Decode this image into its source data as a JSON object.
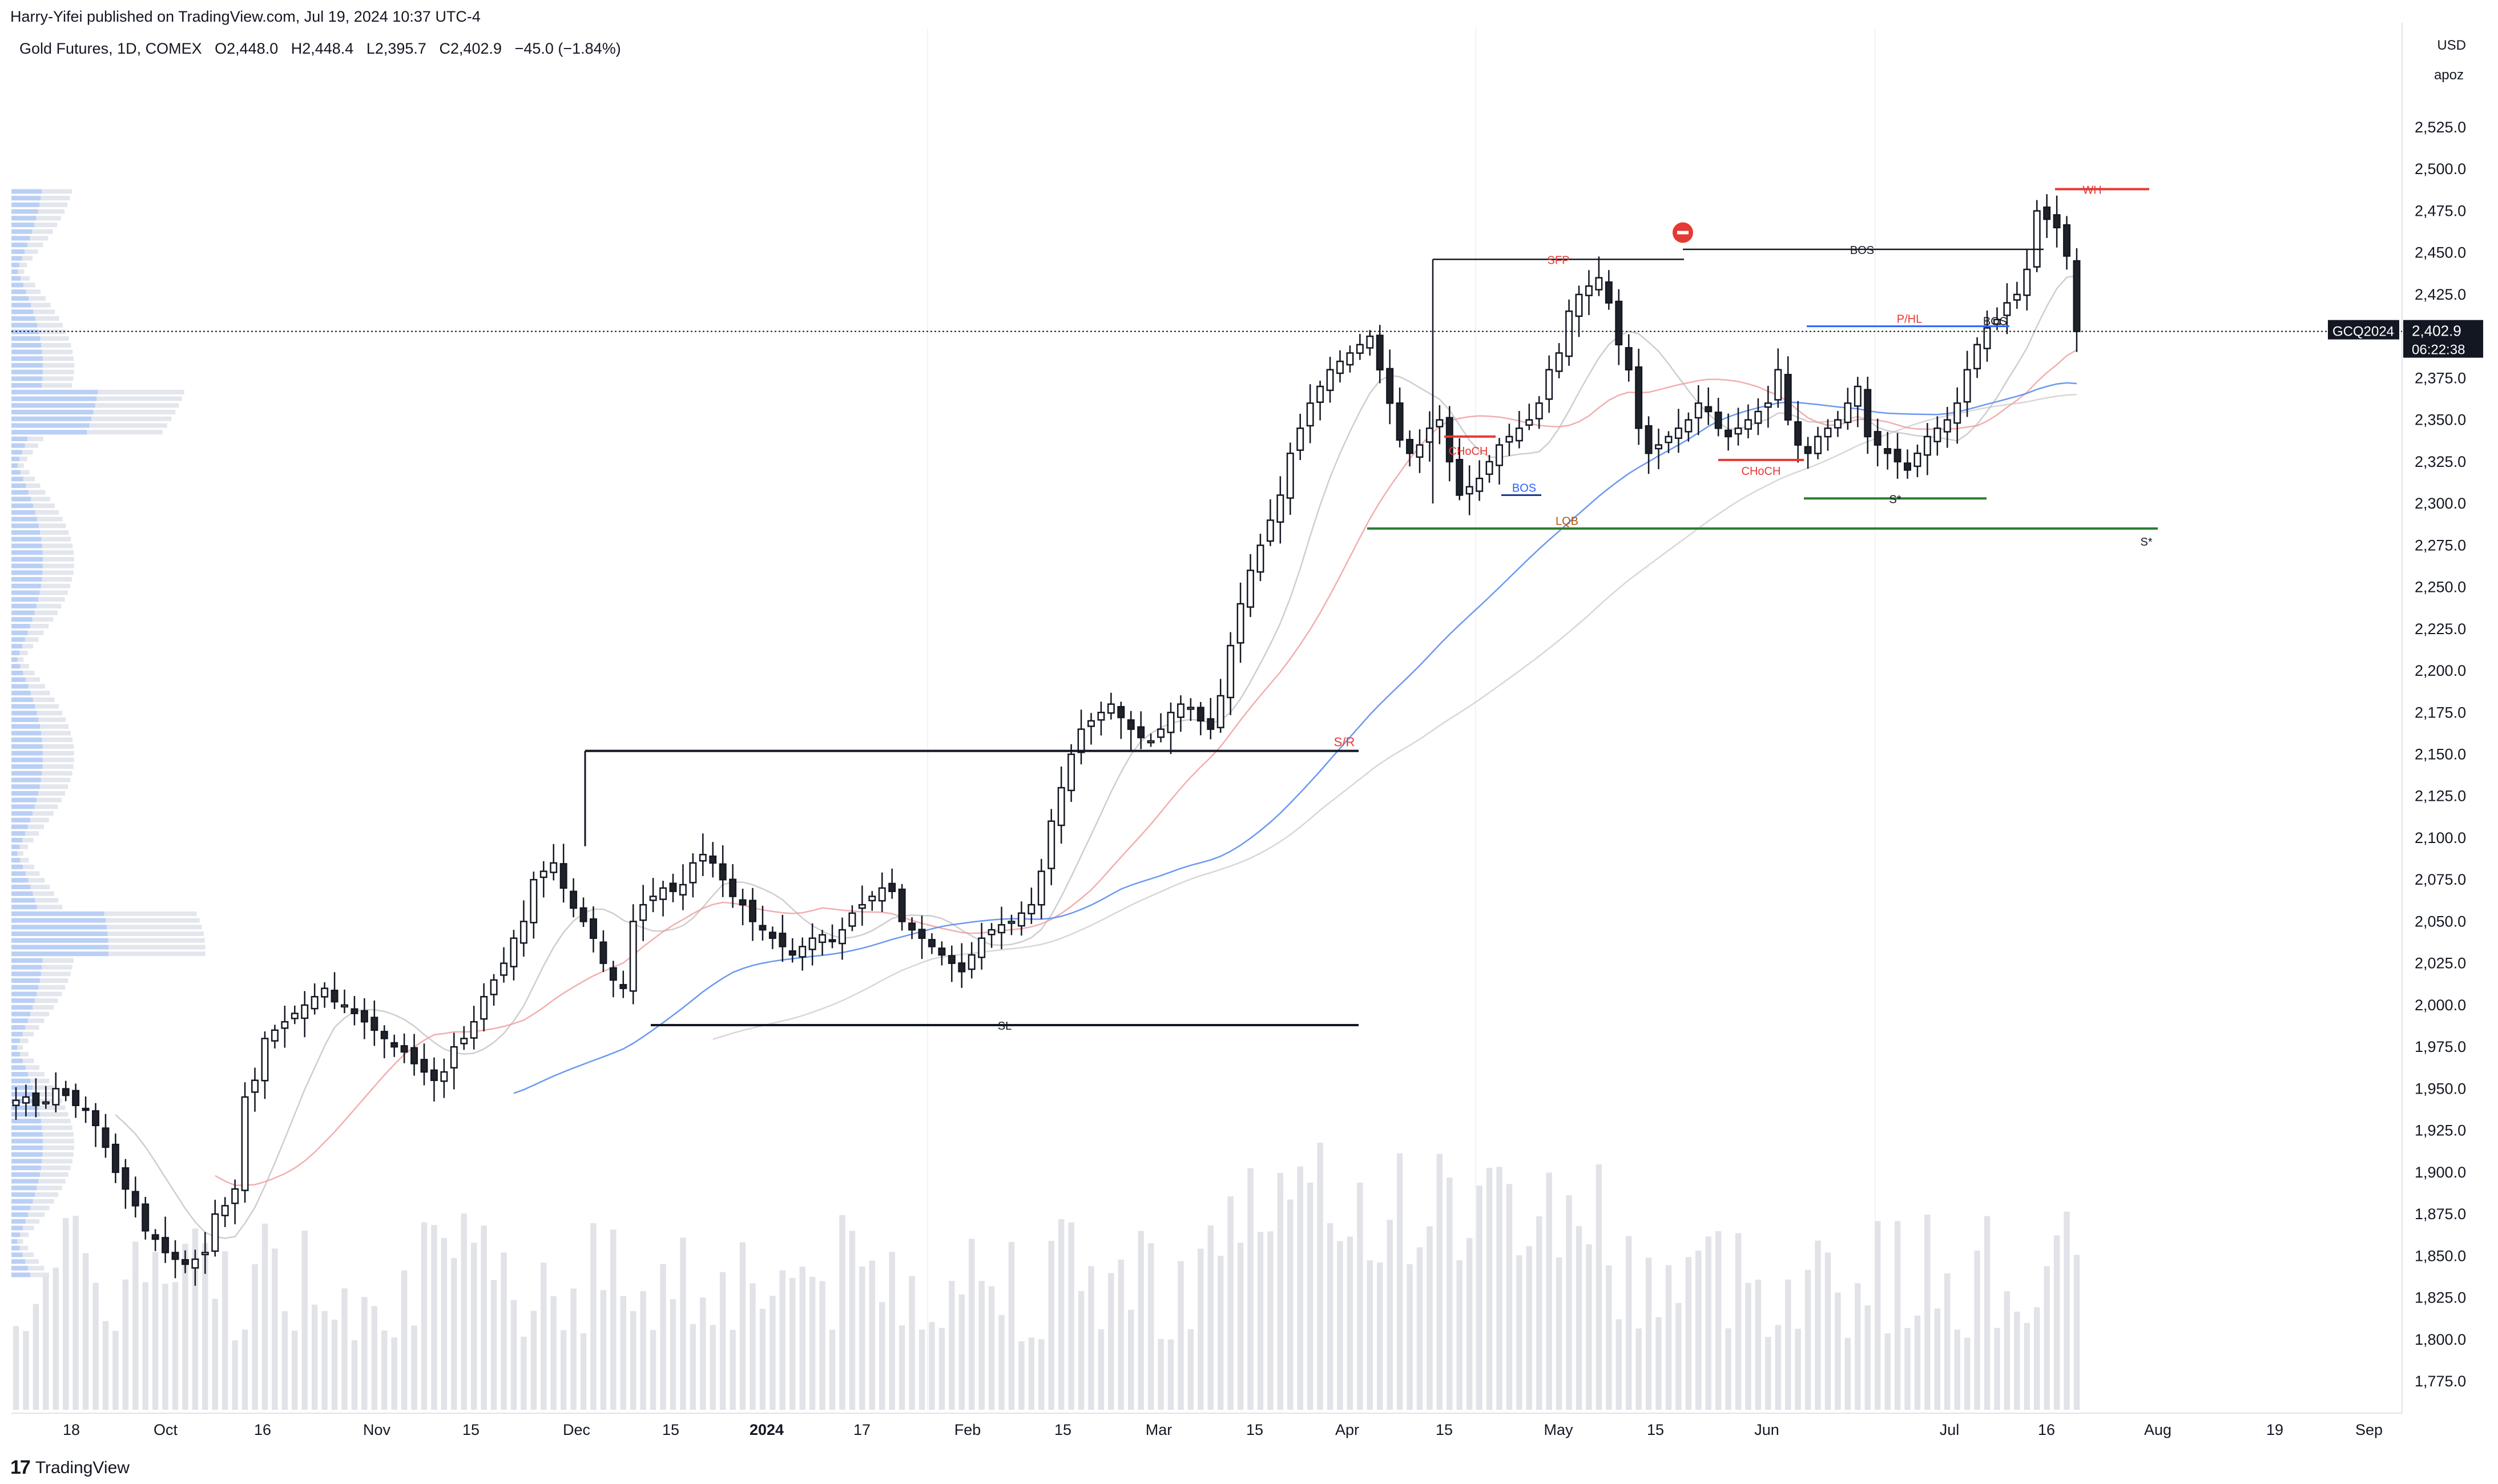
{
  "header": {
    "publisher": "Harry-Yifei published on TradingView.com, Jul 19, 2024 10:37 UTC-4",
    "symbol_line": "Gold Futures, 1D, COMEX",
    "open": "O2,448.0",
    "high": "H2,448.4",
    "low": "L2,395.7",
    "close": "C2,402.9",
    "change": "−45.0 (−1.84%)"
  },
  "axis": {
    "currency": "USD",
    "unit": "apoz",
    "y_ticks": [
      "2,525.0",
      "2,500.0",
      "2,475.0",
      "2,450.0",
      "2,425.0",
      "2,400.0",
      "2,375.0",
      "2,350.0",
      "2,325.0",
      "2,300.0",
      "2,275.0",
      "2,250.0",
      "2,225.0",
      "2,200.0",
      "2,175.0",
      "2,150.0",
      "2,125.0",
      "2,100.0",
      "2,075.0",
      "2,050.0",
      "2,025.0",
      "2,000.0",
      "1,975.0",
      "1,950.0",
      "1,925.0",
      "1,900.0",
      "1,875.0",
      "1,850.0",
      "1,825.0",
      "1,800.0",
      "1,775.0"
    ],
    "x_ticks": [
      "18",
      "Oct",
      "16",
      "Nov",
      "15",
      "Dec",
      "15",
      "2024",
      "17",
      "Feb",
      "15",
      "Mar",
      "15",
      "Apr",
      "15",
      "May",
      "15",
      "Jun",
      "Jul",
      "16",
      "Aug",
      "19",
      "Sep"
    ],
    "last_price_symbol": "GCQ2024",
    "last_price": "2,402.9",
    "countdown": "06:22:38"
  },
  "annotations": {
    "sfp": "SFP",
    "bos_top": "BOS",
    "pjhl": "P/HL",
    "bos_right": "BOS",
    "wh": "WH",
    "choch1": "CHoCH",
    "bos_blue": "BOS",
    "lq": "LQB",
    "choch2": "CHoCH",
    "s_star1": "S*",
    "s_star2": "S*",
    "sr": "S/R",
    "sl": "SL"
  },
  "brand": {
    "logo_text": "TradingView"
  },
  "colors": {
    "up_body": "#ffffff",
    "down_body": "#1f2329",
    "wick": "#131722",
    "volume": "#e1e3e8",
    "green_line": "#2e7d32",
    "red_line": "#e53935",
    "blue_line": "#2962ff",
    "black_line": "#131722"
  },
  "chart_data": {
    "type": "candlestick",
    "title": "Gold Futures, 1D, COMEX",
    "ylim": [
      1760,
      2545
    ],
    "x_range": [
      "2023-09-13",
      "2024-09-03"
    ],
    "candles_close": [
      1943,
      1945,
      1940,
      1942,
      1950,
      1946,
      1940,
      1938,
      1928,
      1915,
      1900,
      1890,
      1880,
      1865,
      1860,
      1852,
      1848,
      1845,
      1848,
      1852,
      1875,
      1880,
      1890,
      1945,
      1955,
      1980,
      1985,
      1990,
      1995,
      2000,
      2005,
      2010,
      2002,
      2000,
      1995,
      1990,
      1985,
      1980,
      1975,
      1972,
      1965,
      1960,
      1955,
      1960,
      1975,
      1980,
      1990,
      2005,
      2015,
      2025,
      2040,
      2050,
      2075,
      2080,
      2085,
      2070,
      2058,
      2050,
      2040,
      2025,
      2015,
      2010,
      2050,
      2060,
      2065,
      2070,
      2068,
      2072,
      2085,
      2090,
      2085,
      2075,
      2065,
      2060,
      2050,
      2045,
      2040,
      2035,
      2030,
      2035,
      2040,
      2042,
      2038,
      2045,
      2055,
      2060,
      2065,
      2070,
      2068,
      2050,
      2045,
      2040,
      2035,
      2030,
      2025,
      2020,
      2030,
      2040,
      2045,
      2048,
      2050,
      2055,
      2060,
      2080,
      2110,
      2130,
      2150,
      2165,
      2170,
      2175,
      2180,
      2172,
      2165,
      2160,
      2158,
      2165,
      2175,
      2180,
      2178,
      2170,
      2165,
      2185,
      2215,
      2240,
      2260,
      2275,
      2290,
      2305,
      2330,
      2345,
      2360,
      2370,
      2380,
      2385,
      2390,
      2395,
      2400,
      2380,
      2360,
      2338,
      2330,
      2335,
      2345,
      2350,
      2325,
      2305,
      2310,
      2315,
      2325,
      2335,
      2340,
      2345,
      2350,
      2360,
      2380,
      2390,
      2415,
      2425,
      2430,
      2435,
      2420,
      2395,
      2380,
      2345,
      2330,
      2335,
      2340,
      2345,
      2350,
      2360,
      2355,
      2345,
      2340,
      2345,
      2350,
      2355,
      2360,
      2380,
      2350,
      2335,
      2330,
      2340,
      2345,
      2350,
      2360,
      2370,
      2340,
      2335,
      2330,
      2325,
      2320,
      2330,
      2340,
      2345,
      2350,
      2360,
      2380,
      2395,
      2405,
      2410,
      2420,
      2425,
      2440,
      2475,
      2470,
      2465,
      2448,
      2402.9
    ],
    "volume_scale": "relative",
    "levels": [
      {
        "label": "S/R",
        "price": 2152
      },
      {
        "label": "SL",
        "price": 1988
      },
      {
        "label": "S*",
        "price": 2285
      },
      {
        "label": "S*",
        "price": 2303
      },
      {
        "label": "SFP",
        "price": 2446
      },
      {
        "label": "BOS",
        "price": 2452
      },
      {
        "label": "P/HL",
        "price": 2406
      },
      {
        "label": "WH",
        "price": 2488
      }
    ],
    "last_price": 2402.9
  }
}
